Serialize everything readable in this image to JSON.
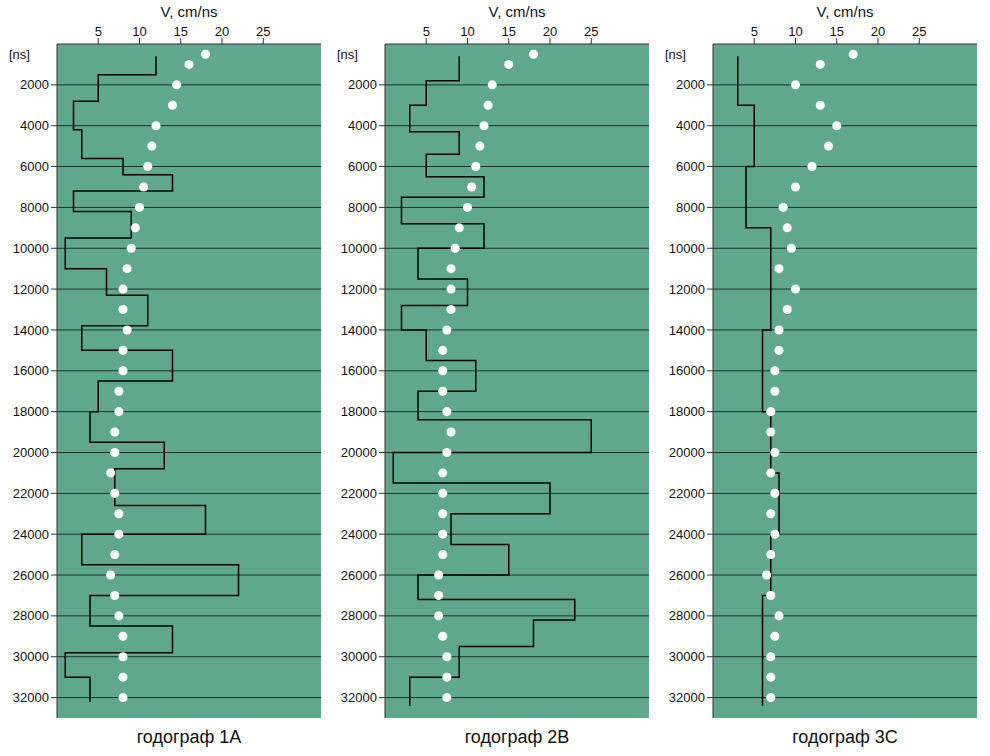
{
  "chart_data": [
    {
      "type": "scatter",
      "title": "годограф 1A",
      "xlabel": "V, cm/ns",
      "ylabel": "[ns]",
      "xlim": [
        0,
        32
      ],
      "xticks": [
        5,
        10,
        15,
        20,
        25
      ],
      "ylim": [
        0,
        33000
      ],
      "yticks": [
        2000,
        4000,
        6000,
        8000,
        10000,
        12000,
        14000,
        16000,
        18000,
        20000,
        22000,
        24000,
        26000,
        28000,
        30000,
        32000
      ],
      "grid": true,
      "color": "#5fa88e",
      "series": [
        {
          "type": "line",
          "line_style": "step",
          "color": "#000000",
          "x": [
            12,
            5,
            2,
            3,
            8,
            14,
            2,
            9,
            1,
            6,
            11,
            3,
            14,
            5,
            4,
            13,
            7,
            18,
            3,
            22,
            4,
            14,
            1,
            4,
            4
          ],
          "y": [
            600,
            1500,
            2800,
            4200,
            5600,
            6400,
            7200,
            8200,
            9500,
            11000,
            12300,
            13800,
            15000,
            16500,
            18000,
            19500,
            20800,
            22600,
            24000,
            25500,
            27000,
            28500,
            29800,
            31000,
            32200
          ]
        },
        {
          "type": "scatter",
          "marker": "circle",
          "color": "#ffffff",
          "x": [
            18,
            16,
            14.5,
            14,
            12,
            11.5,
            11,
            10.5,
            10,
            9.5,
            9,
            8.5,
            8,
            8,
            8.5,
            8,
            8,
            7.5,
            7.5,
            7,
            7,
            6.5,
            7,
            7.5,
            7.5,
            7,
            6.5,
            7,
            7.5,
            8,
            8,
            8,
            8
          ],
          "y": [
            500,
            1000,
            2000,
            3000,
            4000,
            5000,
            6000,
            7000,
            8000,
            9000,
            10000,
            11000,
            12000,
            13000,
            14000,
            15000,
            16000,
            17000,
            18000,
            19000,
            20000,
            21000,
            22000,
            23000,
            24000,
            25000,
            26000,
            27000,
            28000,
            29000,
            30000,
            31000,
            32000
          ]
        }
      ]
    },
    {
      "type": "scatter",
      "title": "годограф 2B",
      "xlabel": "V, cm/ns",
      "ylabel": "[ns]",
      "xlim": [
        0,
        32
      ],
      "xticks": [
        5,
        10,
        15,
        20,
        25
      ],
      "ylim": [
        0,
        33000
      ],
      "yticks": [
        2000,
        4000,
        6000,
        8000,
        10000,
        12000,
        14000,
        16000,
        18000,
        20000,
        22000,
        24000,
        26000,
        28000,
        30000,
        32000
      ],
      "grid": true,
      "color": "#5fa88e",
      "series": [
        {
          "type": "line",
          "line_style": "step",
          "color": "#000000",
          "x": [
            9,
            5,
            3,
            9,
            5,
            12,
            2,
            12,
            4,
            10,
            2,
            5,
            11,
            4,
            25,
            1,
            20,
            8,
            15,
            4,
            23,
            18,
            9,
            3,
            3
          ],
          "y": [
            600,
            1800,
            3000,
            4300,
            5400,
            6500,
            7500,
            8800,
            10000,
            11500,
            12800,
            14000,
            15500,
            17000,
            18400,
            20000,
            21500,
            23000,
            24500,
            26000,
            27200,
            28200,
            29500,
            31000,
            32400
          ]
        },
        {
          "type": "scatter",
          "marker": "circle",
          "color": "#ffffff",
          "x": [
            18,
            15,
            13,
            12.5,
            12,
            11.5,
            11,
            10.5,
            10,
            9,
            8.5,
            8,
            8,
            8,
            7.5,
            7,
            7,
            7,
            7.5,
            8,
            7.5,
            7,
            7,
            7,
            7,
            7,
            6.5,
            6.5,
            6.5,
            7,
            7.5,
            7.5,
            7.5
          ],
          "y": [
            500,
            1000,
            2000,
            3000,
            4000,
            5000,
            6000,
            7000,
            8000,
            9000,
            10000,
            11000,
            12000,
            13000,
            14000,
            15000,
            16000,
            17000,
            18000,
            19000,
            20000,
            21000,
            22000,
            23000,
            24000,
            25000,
            26000,
            27000,
            28000,
            29000,
            30000,
            31000,
            32000
          ]
        }
      ]
    },
    {
      "type": "scatter",
      "title": "годограф 3C",
      "xlabel": "V, cm/ns",
      "ylabel": "[ns]",
      "xlim": [
        0,
        32
      ],
      "xticks": [
        5,
        10,
        15,
        20,
        25
      ],
      "ylim": [
        0,
        33000
      ],
      "yticks": [
        2000,
        4000,
        6000,
        8000,
        10000,
        12000,
        14000,
        16000,
        18000,
        20000,
        22000,
        24000,
        26000,
        28000,
        30000,
        32000
      ],
      "grid": true,
      "color": "#5fa88e",
      "series": [
        {
          "type": "line",
          "line_style": "step",
          "color": "#000000",
          "x": [
            3,
            5,
            4,
            7,
            6,
            7,
            8,
            7,
            6,
            6
          ],
          "y": [
            600,
            3000,
            6000,
            9000,
            14000,
            18000,
            21000,
            24000,
            27000,
            32400
          ]
        },
        {
          "type": "scatter",
          "marker": "circle",
          "color": "#ffffff",
          "x": [
            17,
            13,
            10,
            13,
            15,
            14,
            12,
            10,
            8.5,
            9,
            9.5,
            8,
            10,
            9,
            8,
            8,
            7.5,
            7.5,
            7,
            7,
            7.5,
            7,
            7.5,
            7,
            7.5,
            7,
            6.5,
            7,
            8,
            7.5,
            7,
            7,
            7
          ],
          "y": [
            500,
            1000,
            2000,
            3000,
            4000,
            5000,
            6000,
            7000,
            8000,
            9000,
            10000,
            11000,
            12000,
            13000,
            14000,
            15000,
            16000,
            17000,
            18000,
            19000,
            20000,
            21000,
            22000,
            23000,
            24000,
            25000,
            26000,
            27000,
            28000,
            29000,
            30000,
            31000,
            32000
          ]
        }
      ]
    }
  ]
}
